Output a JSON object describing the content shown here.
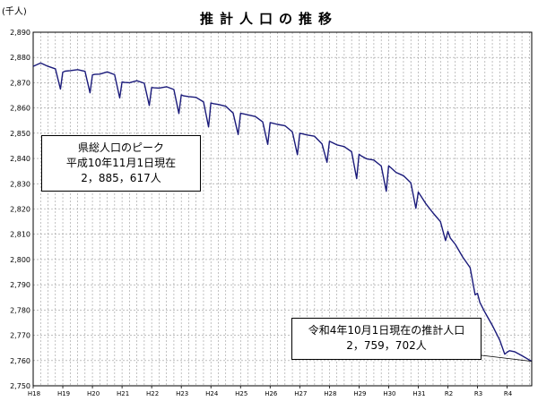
{
  "header": {
    "unit": "(千人)",
    "title": "推計人口の推移"
  },
  "annotations": {
    "peak": {
      "line1": "県総人口のピーク",
      "line2": "平成10年11月1日現在",
      "line3": "2，885，617人"
    },
    "current": {
      "line1": "令和4年10月1日現在の推計人口",
      "line2": "2，759，702人"
    }
  },
  "colors": {
    "line": "#1a1a7a",
    "grid": "#999999",
    "axis": "#000000"
  },
  "chart_data": {
    "type": "line",
    "title": "推計人口の推移",
    "ylabel": "(千人)",
    "ylim": [
      2750,
      2890
    ],
    "yticks": [
      "2,750",
      "2,760",
      "2,770",
      "2,780",
      "2,790",
      "2,800",
      "2,810",
      "2,820",
      "2,830",
      "2,840",
      "2,850",
      "2,860",
      "2,870",
      "2,880",
      "2,890"
    ],
    "xticks": [
      "H18",
      "H19",
      "H20",
      "H21",
      "H22",
      "H23",
      "H24",
      "H25",
      "H26",
      "H27",
      "H28",
      "H29",
      "H30",
      "H31",
      "R2",
      "R3",
      "R4"
    ],
    "xlim": [
      2006.0,
      2022.83
    ],
    "grid": true,
    "series": [
      {
        "x": [
          2006.0,
          2006.25,
          2006.5,
          2006.75,
          2006.92,
          2007.0,
          2007.08,
          2007.25,
          2007.5,
          2007.75,
          2007.92,
          2008.0,
          2008.08,
          2008.25,
          2008.5,
          2008.75,
          2008.92,
          2009.0,
          2009.08,
          2009.25,
          2009.5,
          2009.75,
          2009.92,
          2010.0,
          2010.08,
          2010.25,
          2010.5,
          2010.75,
          2010.92,
          2011.0,
          2011.08,
          2011.25,
          2011.5,
          2011.75,
          2011.92,
          2012.0,
          2012.08,
          2012.25,
          2012.5,
          2012.75,
          2012.92,
          2013.0,
          2013.08,
          2013.25,
          2013.5,
          2013.75,
          2013.92,
          2014.0,
          2014.08,
          2014.25,
          2014.5,
          2014.75,
          2014.92,
          2015.0,
          2015.08,
          2015.25,
          2015.5,
          2015.75,
          2015.92,
          2016.0,
          2016.08,
          2016.25,
          2016.5,
          2016.75,
          2016.92,
          2017.0,
          2017.08,
          2017.25,
          2017.5,
          2017.75,
          2017.92,
          2018.0,
          2018.08,
          2018.25,
          2018.5,
          2018.75,
          2018.92,
          2019.0,
          2019.08,
          2019.25,
          2019.5,
          2019.75,
          2019.92,
          2020.0,
          2020.08,
          2020.25,
          2020.5,
          2020.75,
          2020.92,
          2021.0,
          2021.08,
          2021.25,
          2021.5,
          2021.75,
          2021.92,
          2022.0,
          2022.08,
          2022.25,
          2022.5,
          2022.75,
          2022.83
        ],
        "y": [
          2876.5,
          2877.8,
          2876.5,
          2875.5,
          2867.5,
          2874.2,
          2874.6,
          2874.8,
          2875.2,
          2874.5,
          2866.0,
          2873.1,
          2873.3,
          2873.4,
          2874.3,
          2873.2,
          2864.0,
          2870.3,
          2870.1,
          2870.0,
          2870.8,
          2869.8,
          2861.0,
          2868.1,
          2868.0,
          2867.9,
          2868.4,
          2867.3,
          2857.8,
          2865.2,
          2864.8,
          2864.5,
          2864.2,
          2862.4,
          2852.5,
          2862.0,
          2861.7,
          2861.4,
          2860.7,
          2858.0,
          2849.5,
          2857.9,
          2857.7,
          2857.3,
          2856.6,
          2854.5,
          2845.6,
          2854.2,
          2854.0,
          2853.5,
          2853.0,
          2850.5,
          2841.5,
          2850.0,
          2849.8,
          2849.3,
          2848.8,
          2845.8,
          2838.5,
          2846.8,
          2846.4,
          2845.4,
          2844.7,
          2842.7,
          2832.0,
          2841.7,
          2841.0,
          2839.9,
          2839.4,
          2837.0,
          2827.0,
          2837.1,
          2836.3,
          2834.5,
          2833.2,
          2830.4,
          2820.3,
          2826.7,
          2825.3,
          2822.2,
          2818.4,
          2815.0,
          2807.5,
          2811.1,
          2808.5,
          2806.0,
          2801.0,
          2796.8,
          2786.0,
          2786.6,
          2783.0,
          2779.1,
          2773.9,
          2768.1,
          2762.5,
          2763.3,
          2763.9,
          2763.5,
          2761.9,
          2760.2,
          2759.7
        ]
      }
    ]
  }
}
